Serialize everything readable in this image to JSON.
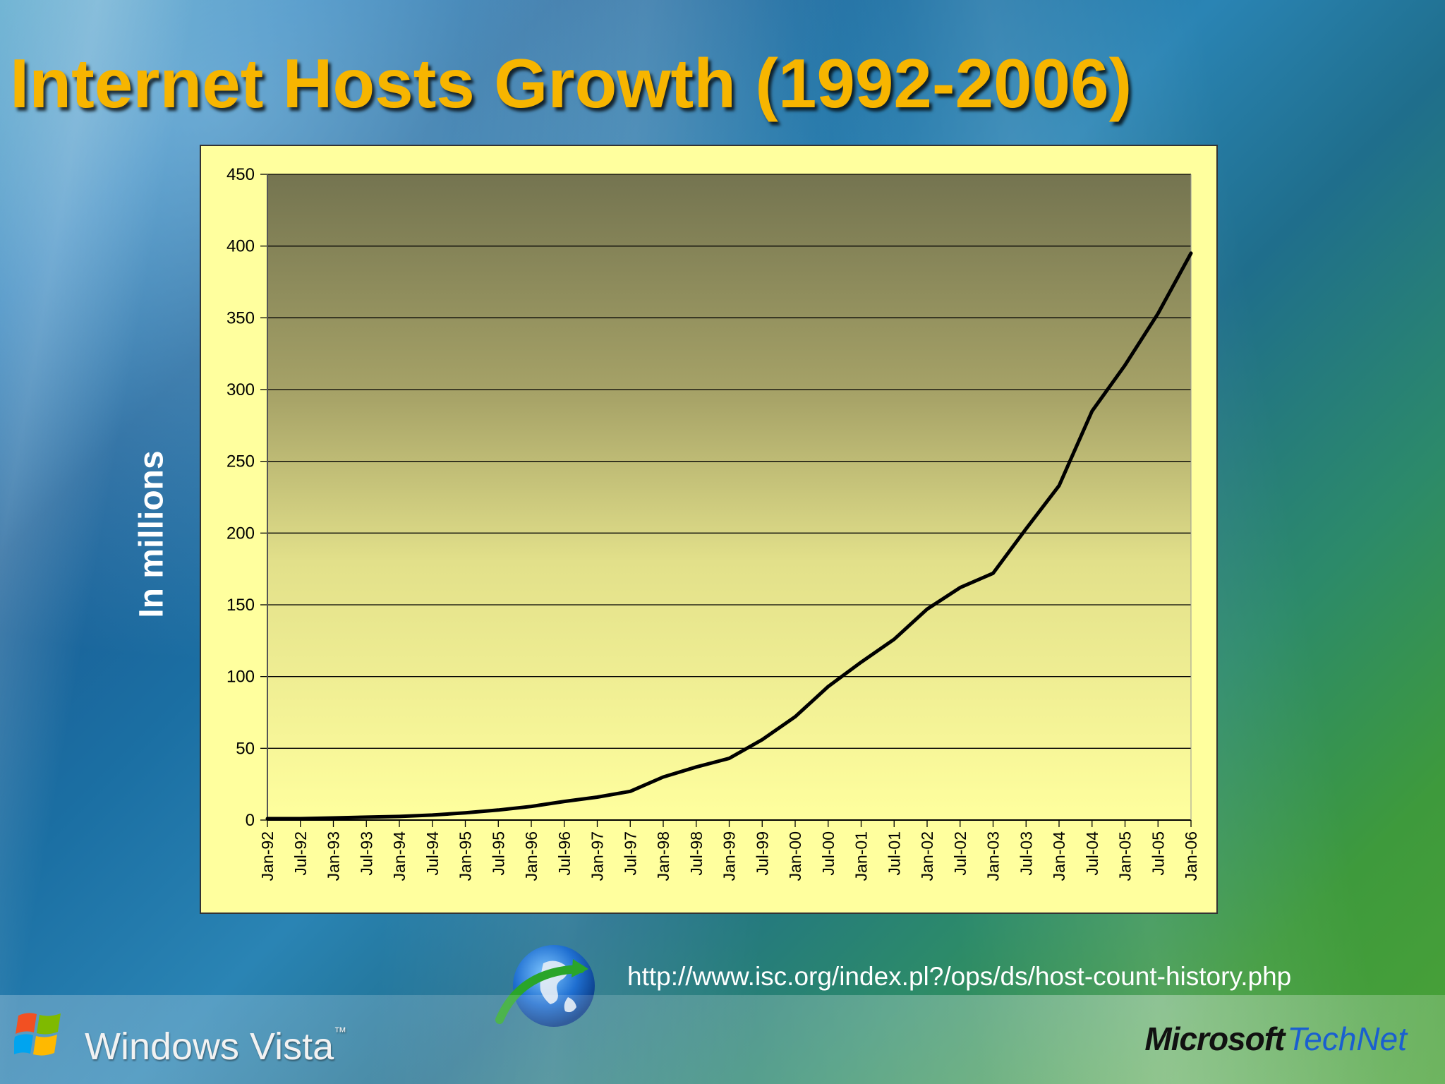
{
  "slide": {
    "title": "Internet Hosts Growth (1992-2006)",
    "y_axis_title": "In millions",
    "source_url": "http://www.isc.org/index.pl?/ops/ds/host-count-history.php",
    "footer_left_brand": "Windows Vista",
    "footer_right_brand_microsoft": "Microsoft",
    "footer_right_brand_technet": "TechNet",
    "globe_icon": "globe-with-arrow-icon",
    "windows_logo_icon": "windows-flag-icon"
  },
  "colors": {
    "title": "#f7b500",
    "chart_bg": "#ffff9e",
    "plot_top": "#747450",
    "plot_bottom": "#ffff9e",
    "line": "#000000",
    "technet": "#1a5fd0"
  },
  "chart_data": {
    "type": "line",
    "title": "",
    "xlabel": "",
    "ylabel": "In millions",
    "ylim": [
      0,
      450
    ],
    "yticks": [
      0,
      50,
      100,
      150,
      200,
      250,
      300,
      350,
      400,
      450
    ],
    "grid": true,
    "categories": [
      "Jan-92",
      "Jul-92",
      "Jan-93",
      "Jul-93",
      "Jan-94",
      "Jul-94",
      "Jan-95",
      "Jul-95",
      "Jan-96",
      "Jul-96",
      "Jan-97",
      "Jul-97",
      "Jan-98",
      "Jul-98",
      "Jan-99",
      "Jul-99",
      "Jan-00",
      "Jul-00",
      "Jan-01",
      "Jul-01",
      "Jan-02",
      "Jul-02",
      "Jan-03",
      "Jul-03",
      "Jan-04",
      "Jul-04",
      "Jan-05",
      "Jul-05",
      "Jan-06"
    ],
    "series": [
      {
        "values": [
          1,
          1,
          1.5,
          2,
          2.5,
          3.5,
          5,
          7,
          9.5,
          13,
          16,
          20,
          30,
          37,
          43,
          56,
          72,
          93,
          110,
          126,
          147,
          162,
          172,
          203,
          233,
          285,
          317,
          353,
          395
        ]
      }
    ]
  }
}
